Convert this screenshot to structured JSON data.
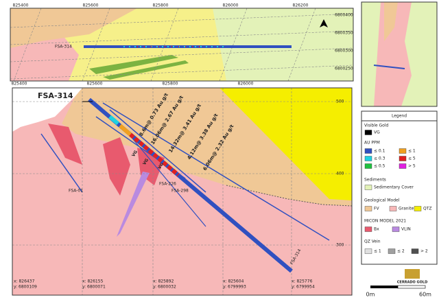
{
  "plan_map": {
    "x_labels_top": [
      "825400",
      "825600",
      "825800",
      "826000",
      "826200"
    ],
    "x_labels_bottom": [
      "825400",
      "825600",
      "825800",
      "826000"
    ],
    "y_labels": [
      "6800400",
      "6800350",
      "6800300",
      "6800250"
    ],
    "hole_label": "FSA-314"
  },
  "section": {
    "hole_label": "FSA-314",
    "intercepts": [
      "8.6m@ 0.73 Au g/t",
      "16.06m@ 2.67 Au g/t",
      "14.32m@ 3.41 Au g/t",
      "4.12m@ 3.38 Au g/t",
      "6.06m@ 2.32 Au g/t"
    ],
    "vg_labels": [
      "VG",
      "VG",
      "VG"
    ],
    "hole_labels": [
      "FSA-01",
      "FSA-226",
      "FSA-298",
      "FSA-314"
    ],
    "elevation_labels": [
      "500",
      "400",
      "300"
    ],
    "coordinates": [
      {
        "x": "x: 826437",
        "y": "y: 6800109"
      },
      {
        "x": "x: 826155",
        "y": "y: 6800071"
      },
      {
        "x": "x: 825892",
        "y": "y: 6800032"
      },
      {
        "x": "x: 825604",
        "y": "y: 6799993"
      },
      {
        "x": "x: 825776",
        "y": "y: 6799954"
      }
    ]
  },
  "legend": {
    "title": "Legend",
    "visible_gold": {
      "heading": "Visible Gold",
      "item": "VG"
    },
    "au_ppm": {
      "heading": "AU PPM",
      "items": [
        "≤ 0.1",
        "≤ 1",
        "≤ 0.3",
        "≤ 5",
        "≤ 0.5",
        "> 5"
      ]
    },
    "sediments": {
      "heading": "Sediments",
      "item": "Sedimentary Cover"
    },
    "geological_model": {
      "heading": "Geological Model",
      "items": [
        "FV",
        "Granite",
        "QTZ"
      ]
    },
    "micon_model": {
      "heading": "MICON MODEL 2021",
      "items": [
        "Bx",
        "VLIN"
      ]
    },
    "qz_vein": {
      "heading": "QZ Vein",
      "items": [
        "≤ 1",
        "≤ 2",
        "> 2"
      ]
    }
  },
  "scale": {
    "start": "0m",
    "end": "60m"
  },
  "logo": "CERRADO GOLD"
}
